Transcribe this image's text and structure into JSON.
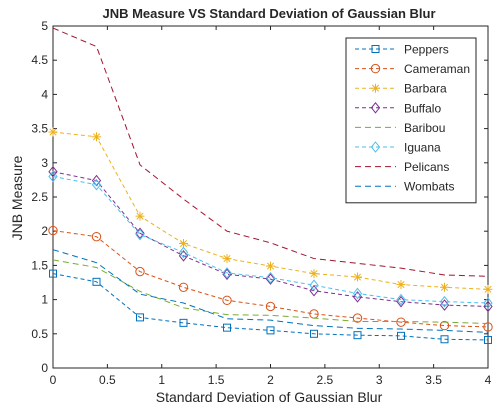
{
  "chart_data": {
    "type": "line",
    "title": "JNB Measure VS Standard Deviation of Gaussian Blur",
    "xlabel": "Standard Deviation of Gaussian Blur",
    "ylabel": "JNB Measure",
    "xlim": [
      0,
      4
    ],
    "ylim": [
      0,
      5
    ],
    "xticks": [
      "0",
      "0.5",
      "1",
      "1.5",
      "2",
      "2.5",
      "3",
      "3.5",
      "4"
    ],
    "yticks": [
      "0",
      "0.5",
      "1",
      "1.5",
      "2",
      "2.5",
      "3",
      "3.5",
      "4",
      "4.5",
      "5"
    ],
    "legend_position": "top-right",
    "grid": false,
    "x": [
      0,
      0.4,
      0.8,
      1.2,
      1.6,
      2.0,
      2.4,
      2.8,
      3.2,
      3.6,
      4.0
    ],
    "series": [
      {
        "name": "Peppers",
        "color": "#0072BD",
        "dash": "4 3",
        "marker": "square",
        "values": [
          1.38,
          1.26,
          0.74,
          0.66,
          0.59,
          0.55,
          0.5,
          0.48,
          0.47,
          0.42,
          0.41
        ]
      },
      {
        "name": "Cameraman",
        "color": "#D95319",
        "dash": "4 3",
        "marker": "circle",
        "values": [
          2.01,
          1.92,
          1.41,
          1.18,
          0.99,
          0.9,
          0.79,
          0.73,
          0.67,
          0.62,
          0.6
        ]
      },
      {
        "name": "Barbara",
        "color": "#EDB120",
        "dash": "4 3",
        "marker": "star",
        "values": [
          3.45,
          3.38,
          2.22,
          1.82,
          1.6,
          1.49,
          1.38,
          1.33,
          1.22,
          1.18,
          1.15
        ]
      },
      {
        "name": "Buffalo",
        "color": "#7E2F8E",
        "dash": "4 3",
        "marker": "diamond",
        "values": [
          2.87,
          2.74,
          1.97,
          1.64,
          1.37,
          1.3,
          1.13,
          1.04,
          0.97,
          0.92,
          0.9
        ]
      },
      {
        "name": "Baribou",
        "color": "#77AC30",
        "dash": "6 4",
        "marker": "none",
        "values": [
          1.58,
          1.47,
          1.12,
          0.88,
          0.78,
          0.77,
          0.73,
          0.68,
          0.68,
          0.67,
          0.65
        ]
      },
      {
        "name": "Iguana",
        "color": "#4DBEEE",
        "dash": "4 3",
        "marker": "diamond",
        "values": [
          2.8,
          2.68,
          1.95,
          1.69,
          1.39,
          1.32,
          1.21,
          1.09,
          1.0,
          0.97,
          0.95
        ]
      },
      {
        "name": "Pelicans",
        "color": "#A2142F",
        "dash": "6 4",
        "marker": "none",
        "values": [
          4.97,
          4.7,
          2.97,
          2.47,
          2.0,
          1.83,
          1.6,
          1.53,
          1.46,
          1.36,
          1.34
        ]
      },
      {
        "name": "Wombats",
        "color": "#0072BD",
        "dash": "6 4",
        "marker": "none",
        "values": [
          1.73,
          1.54,
          1.08,
          0.95,
          0.72,
          0.7,
          0.62,
          0.58,
          0.57,
          0.55,
          0.52
        ]
      }
    ]
  }
}
